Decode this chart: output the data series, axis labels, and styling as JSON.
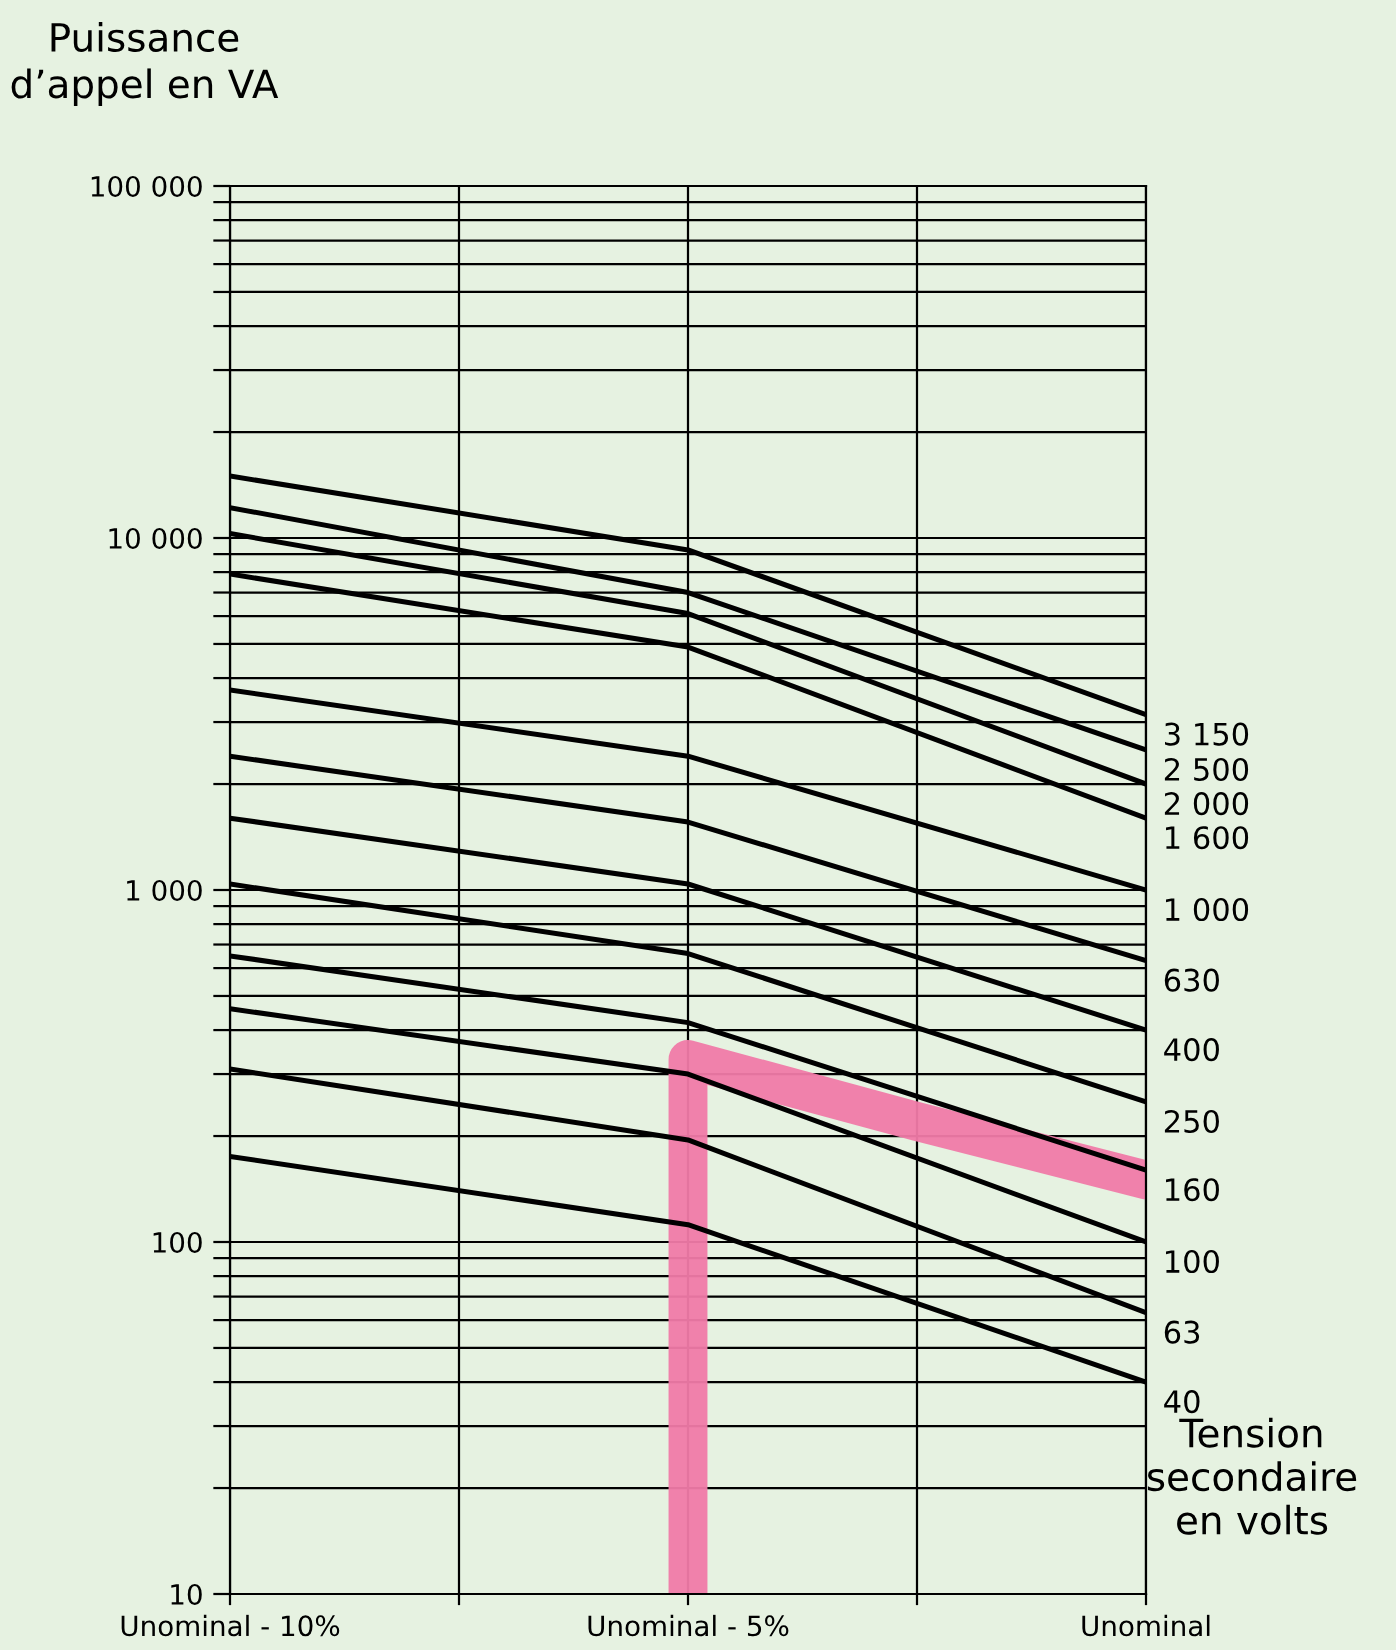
{
  "chart_data": {
    "type": "line",
    "xlabel": "Tension\nsecondaire\nen volts",
    "ylabel": "Puissance\nd’appel en VA",
    "log": "y",
    "grid": true,
    "legend": false,
    "x": [
      -10,
      -5,
      0
    ],
    "xlim": [
      -10,
      0
    ],
    "xticks": [
      {
        "value": -10,
        "label": "Unominal - 10%"
      },
      {
        "value": -7.5,
        "label": null
      },
      {
        "value": -5,
        "label": "Unominal - 5%"
      },
      {
        "value": -2.5,
        "label": null
      },
      {
        "value": 0,
        "label": "Unominal"
      }
    ],
    "ylim": [
      10,
      100000
    ],
    "yticks": [
      10,
      {
        "value": 20,
        "label": null
      },
      {
        "value": 30,
        "label": null
      },
      {
        "value": 40,
        "label": null
      },
      {
        "value": 50,
        "label": null
      },
      {
        "value": 60,
        "label": null
      },
      {
        "value": 70,
        "label": null
      },
      {
        "value": 80,
        "label": null
      },
      {
        "value": 90,
        "label": null
      },
      100,
      {
        "value": 200,
        "label": null
      },
      {
        "value": 300,
        "label": null
      },
      {
        "value": 400,
        "label": null
      },
      {
        "value": 500,
        "label": null
      },
      {
        "value": 600,
        "label": null
      },
      {
        "value": 700,
        "label": null
      },
      {
        "value": 800,
        "label": null
      },
      {
        "value": 900,
        "label": null
      },
      {
        "value": 1000,
        "label": "1 000"
      },
      {
        "value": 2000,
        "label": null
      },
      {
        "value": 3000,
        "label": null
      },
      {
        "value": 4000,
        "label": null
      },
      {
        "value": 5000,
        "label": null
      },
      {
        "value": 6000,
        "label": null
      },
      {
        "value": 7000,
        "label": null
      },
      {
        "value": 8000,
        "label": null
      },
      {
        "value": 9000,
        "label": null
      },
      {
        "value": 10000,
        "label": "10 000"
      },
      {
        "value": 20000,
        "label": null
      },
      {
        "value": 30000,
        "label": null
      },
      {
        "value": 40000,
        "label": null
      },
      {
        "value": 50000,
        "label": null
      },
      {
        "value": 60000,
        "label": null
      },
      {
        "value": 70000,
        "label": null
      },
      {
        "value": 80000,
        "label": null
      },
      {
        "value": 90000,
        "label": null
      },
      {
        "value": 100000,
        "label": "100 000"
      }
    ],
    "series": [
      {
        "name": "3 150",
        "color": "#000000",
        "values": [
          15000,
          9250,
          3150
        ]
      },
      {
        "name": "2 500",
        "color": "#000000",
        "values": [
          12200,
          7000,
          2500
        ]
      },
      {
        "name": "2 000",
        "color": "#000000",
        "values": [
          10300,
          6100,
          2000
        ]
      },
      {
        "name": "1 600",
        "color": "#000000",
        "values": [
          7900,
          4900,
          1600
        ]
      },
      {
        "name": "1 000",
        "color": "#000000",
        "values": [
          3700,
          2400,
          1000
        ]
      },
      {
        "name": "630",
        "color": "#000000",
        "values": [
          2400,
          1560,
          630
        ]
      },
      {
        "name": "400",
        "color": "#000000",
        "values": [
          1600,
          1040,
          400
        ]
      },
      {
        "name": "250",
        "color": "#000000",
        "values": [
          1040,
          660,
          250
        ]
      },
      {
        "name": "160",
        "color": "#000000",
        "values": [
          650,
          420,
          160
        ]
      },
      {
        "name": "100",
        "color": "#000000",
        "values": [
          460,
          300,
          100
        ]
      },
      {
        "name": "63",
        "color": "#000000",
        "values": [
          310,
          195,
          63
        ]
      },
      {
        "name": "40",
        "color": "#000000",
        "values": [
          175,
          112,
          40
        ]
      },
      {
        "color": "#f07aa8",
        "x": [
          -5,
          -5,
          -2.5,
          0
        ],
        "values": [
          10,
          330,
          220,
          150
        ]
      }
    ]
  }
}
